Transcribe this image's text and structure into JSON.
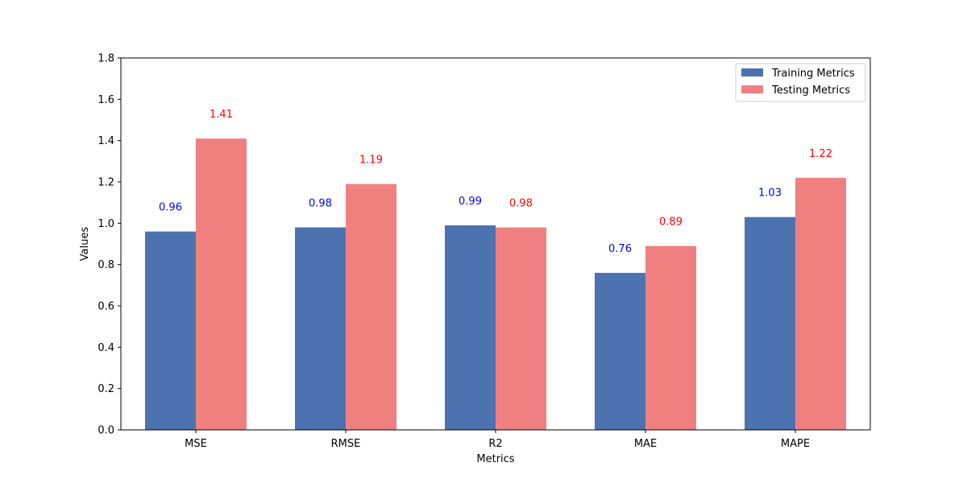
{
  "chart_data": {
    "type": "bar",
    "title": "",
    "xlabel": "Metrics",
    "ylabel": "Values",
    "categories": [
      "MSE",
      "RMSE",
      "R2",
      "MAE",
      "MAPE"
    ],
    "ylim": [
      0,
      1.8
    ],
    "yticks": [
      0.0,
      0.2,
      0.4,
      0.6,
      0.8,
      1.0,
      1.2,
      1.4,
      1.6,
      1.8
    ],
    "ytick_labels": [
      "0.0",
      "0.2",
      "0.4",
      "0.6",
      "0.8",
      "1.0",
      "1.2",
      "1.4",
      "1.6",
      "1.8"
    ],
    "grid": false,
    "legend_position": "top-right",
    "series": [
      {
        "name": "Training Metrics",
        "color": "#4c72b0",
        "label_color": "#0000ff",
        "values": [
          0.96,
          0.98,
          0.99,
          0.76,
          1.03
        ],
        "labels": [
          "0.96",
          "0.98",
          "0.99",
          "0.76",
          "1.03"
        ]
      },
      {
        "name": "Testing Metrics",
        "color": "#f08080",
        "label_color": "#ff0000",
        "values": [
          1.41,
          1.19,
          0.98,
          0.89,
          1.22
        ],
        "labels": [
          "1.41",
          "1.19",
          "0.98",
          "0.89",
          "1.22"
        ]
      }
    ]
  }
}
